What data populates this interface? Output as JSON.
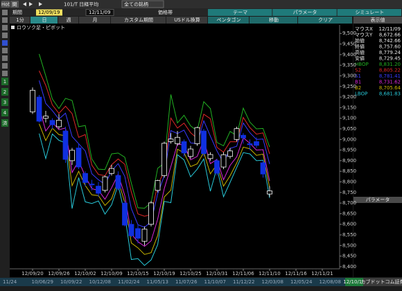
{
  "toolbar": {
    "hot": "Hot",
    "kan": "関",
    "symbol": "101/T 日経平均",
    "filter": "全ての銘柄",
    "period_label": "期間",
    "start_date": "12/09/19",
    "end_date": "12/11/09",
    "price_band": "価格帯",
    "top_tabs": [
      "テーマ",
      "パラメータ",
      "シミュレート"
    ]
  },
  "tabs": [
    "1分",
    "日",
    "週",
    "月",
    "カスタム期間",
    "USドル換算",
    "ペンタゴン",
    "移動",
    "クリア"
  ],
  "sidebar": [
    "1",
    "2",
    "3",
    "4",
    "済"
  ],
  "panel": {
    "title": "表示値",
    "rows": [
      {
        "label": "マウスX",
        "value": "12/11/09"
      },
      {
        "label": "マウスY",
        "value": "8,672.66"
      },
      {
        "label": "始値",
        "value": "8,742.66"
      },
      {
        "label": "終値",
        "value": "8,757.60"
      },
      {
        "label": "高値",
        "value": "8,779.24"
      },
      {
        "label": "安値",
        "value": "8,729.45"
      }
    ],
    "parameter_title": "パラメータ"
  },
  "footer": {
    "dates": [
      "11/24",
      "10/06/29",
      "10/09/22",
      "10/12/08",
      "11/02/24",
      "11/05/13",
      "11/07/26",
      "11/10/07",
      "11/12/22",
      "12/03/08",
      "12/05/24",
      "12/08/08"
    ],
    "current": "12/10/19",
    "brand": "カブドットコム証券"
  },
  "chart_data": {
    "type": "candlestick",
    "title": "ロウソク足・ピボット",
    "categories": [
      "12/09/20",
      null,
      null,
      null,
      "12/09/26",
      null,
      null,
      null,
      "12/10/02",
      null,
      null,
      null,
      "12/10/09",
      null,
      null,
      null,
      "12/10/15",
      null,
      null,
      null,
      "12/10/19",
      null,
      null,
      null,
      "12/10/25",
      null,
      null,
      null,
      "12/10/31",
      null,
      null,
      null,
      "12/11/06",
      null,
      null,
      null,
      "12/11/10",
      null,
      null,
      null,
      "12/11/16",
      null,
      null,
      null,
      "12/11/21",
      null,
      null
    ],
    "open": [
      9130,
      9200,
      9100,
      9090,
      9060,
      9040,
      8900,
      8960,
      8840,
      8790,
      8780,
      8760,
      8840,
      8830,
      8700,
      8600,
      8580,
      8520,
      8600,
      8760,
      8830,
      8990,
      8980,
      8990,
      8920,
      8980,
      9040,
      8910,
      8900,
      8870,
      8920,
      9000,
      9020,
      8980,
      8990,
      8890,
      8742.66,
      null,
      null,
      null,
      null,
      null,
      null,
      null,
      null,
      null,
      null
    ],
    "high": [
      9245,
      9210,
      9135,
      9100,
      9120,
      9060,
      8960,
      8980,
      8850,
      8810,
      8800,
      8830,
      8880,
      8850,
      8710,
      8620,
      8600,
      8590,
      8710,
      8810,
      8990,
      9030,
      9040,
      9000,
      8970,
      9060,
      9050,
      8940,
      8910,
      8940,
      8960,
      9060,
      9030,
      9000,
      9010,
      8900,
      8779.24,
      null,
      null,
      null,
      null,
      null,
      null,
      null,
      null,
      null,
      null
    ],
    "low": [
      9120,
      9080,
      9080,
      9050,
      9050,
      8890,
      8880,
      8860,
      8780,
      8760,
      8730,
      8750,
      8830,
      8760,
      8590,
      8540,
      8510,
      8500,
      8590,
      8750,
      8820,
      8980,
      8970,
      8920,
      8910,
      8970,
      8920,
      8900,
      8830,
      8860,
      8910,
      8990,
      8980,
      8950,
      8960,
      8820,
      8729.45,
      null,
      null,
      null,
      null,
      null,
      null,
      null,
      null,
      null,
      null
    ],
    "close": [
      9232,
      9086,
      9110,
      9069,
      9091,
      8906,
      8949,
      8870,
      8797,
      8786,
      8746,
      8824,
      8863,
      8769,
      8596,
      8546,
      8534,
      8577,
      8701,
      8806,
      8982,
      9002,
      9010,
      8936,
      8955,
      9056,
      8933,
      8929,
      8841,
      8928,
      8946,
      9051,
      9007,
      8975,
      8972,
      8837,
      8757.6,
      null,
      null,
      null,
      null,
      null,
      null,
      null,
      null,
      null,
      null
    ],
    "up_color": "#ffffff",
    "down_color": "#1030e0",
    "series": [
      {
        "name": "HBOP",
        "color": "#22b022",
        "panel_value": "8,831.20",
        "values": [
          null,
          9403,
          9300,
          9191,
          9146,
          9194,
          9184,
          9060,
          9066,
          8908,
          8860,
          8858,
          8932,
          8936,
          8916,
          8794,
          8678,
          8676,
          8702,
          8864,
          8888,
          9212,
          9078,
          9114,
          9064,
          9040,
          9178,
          9146,
          8986,
          8970,
          9038,
          9018,
          9148,
          9082,
          9050,
          9052,
          8964,
          null,
          null,
          null,
          null,
          null,
          null,
          null,
          null,
          null,
          null
        ]
      },
      {
        "name": "S2",
        "color": "#e02828",
        "panel_value": "8,805.22",
        "values": [
          null,
          9324,
          9255,
          9163,
          9123,
          9157,
          9122,
          9010,
          9023,
          8879,
          8835,
          8829,
          8881,
          8908,
          8883,
          8752,
          8649,
          8638,
          8646,
          8787,
          8849,
          9101,
          9054,
          9077,
          9032,
          9005,
          9119,
          9098,
          8963,
          8940,
          8989,
          8989,
          9104,
          9056,
          9025,
          9031,
          8932,
          null,
          null,
          null,
          null,
          null,
          null,
          null,
          null,
          null,
          null
        ]
      },
      {
        "name": "S1",
        "color": "#3a3aff",
        "panel_value": "8,781.41",
        "values": [
          null,
          9278,
          9170,
          9136,
          9096,
          9124,
          9014,
          8980,
          8946,
          8838,
          8810,
          8788,
          8852,
          8886,
          8826,
          8674,
          8598,
          8586,
          8612,
          8744,
          8828,
          9042,
          9028,
          9044,
          8984,
          8980,
          9088,
          9016,
          8946,
          8890,
          8958,
          8968,
          9078,
          9032,
          9000,
          9002,
          8884,
          null,
          null,
          null,
          null,
          null,
          null,
          null,
          null,
          null,
          null
        ]
      },
      {
        "name": "B1",
        "color": "#d828d8",
        "panel_value": "8,731.62",
        "values": [
          null,
          9153,
          9040,
          9081,
          9046,
          9054,
          8844,
          8900,
          8826,
          8768,
          8760,
          8718,
          8772,
          8836,
          8736,
          8554,
          8518,
          8496,
          8522,
          8624,
          8768,
          8872,
          8978,
          8974,
          8904,
          8920,
          8998,
          8886,
          8906,
          8810,
          8878,
          8918,
          9008,
          8982,
          8950,
          8952,
          8804,
          null,
          null,
          null,
          null,
          null,
          null,
          null,
          null,
          null,
          null
        ]
      },
      {
        "name": "B2",
        "color": "#c8b400",
        "panel_value": "8,705.64",
        "values": [
          null,
          9074,
          8995,
          9053,
          9023,
          9017,
          8782,
          8850,
          8783,
          8739,
          8735,
          8689,
          8721,
          8808,
          8703,
          8512,
          8489,
          8458,
          8466,
          8547,
          8729,
          8761,
          8954,
          8937,
          8872,
          8885,
          8939,
          8838,
          8883,
          8780,
          8829,
          8889,
          8964,
          8956,
          8925,
          8931,
          8772,
          null,
          null,
          null,
          null,
          null,
          null,
          null,
          null,
          null,
          null
        ]
      },
      {
        "name": "LBOP",
        "color": "#28c8d8",
        "panel_value": "8,681.83",
        "values": [
          null,
          9028,
          8910,
          9026,
          8996,
          8984,
          8674,
          8820,
          8706,
          8698,
          8710,
          8648,
          8692,
          8786,
          8646,
          8434,
          8438,
          8406,
          8432,
          8504,
          8708,
          8702,
          8928,
          8904,
          8824,
          8860,
          8908,
          8756,
          8866,
          8730,
          8798,
          8868,
          8938,
          8932,
          8900,
          8902,
          8724,
          null,
          null,
          null,
          null,
          null,
          null,
          null,
          null,
          null,
          null
        ]
      }
    ],
    "ylim": [
      8390,
      9540
    ],
    "yticks": [
      {
        "value": 8400,
        "label": "8,400"
      },
      {
        "value": 8450,
        "label": "8,450"
      },
      {
        "value": 8500,
        "label": "8,500"
      },
      {
        "value": 8550,
        "label": "8,550"
      },
      {
        "value": 8600,
        "label": "8,600"
      },
      {
        "value": 8650,
        "label": "8,650"
      },
      {
        "value": 8700,
        "label": "8,700"
      },
      {
        "value": 8750,
        "label": "8,750"
      },
      {
        "value": 8800,
        "label": "8,800"
      },
      {
        "value": 8850,
        "label": "8,850"
      },
      {
        "value": 8900,
        "label": "8,900"
      },
      {
        "value": 8950,
        "label": "8,950"
      },
      {
        "value": 9000,
        "label": "9,000"
      },
      {
        "value": 9050,
        "label": "9,050"
      },
      {
        "value": 9100,
        "label": "9,100"
      },
      {
        "value": 9150,
        "label": "9,150"
      },
      {
        "value": 9200,
        "label": "9,200"
      },
      {
        "value": 9250,
        "label": "9,250"
      },
      {
        "value": 9300,
        "label": "9,300"
      },
      {
        "value": 9350,
        "label": "9,350"
      },
      {
        "value": 9400,
        "label": "9,400"
      },
      {
        "value": 9450,
        "label": "9,450"
      },
      {
        "value": 9500,
        "label": "9,500"
      }
    ]
  }
}
